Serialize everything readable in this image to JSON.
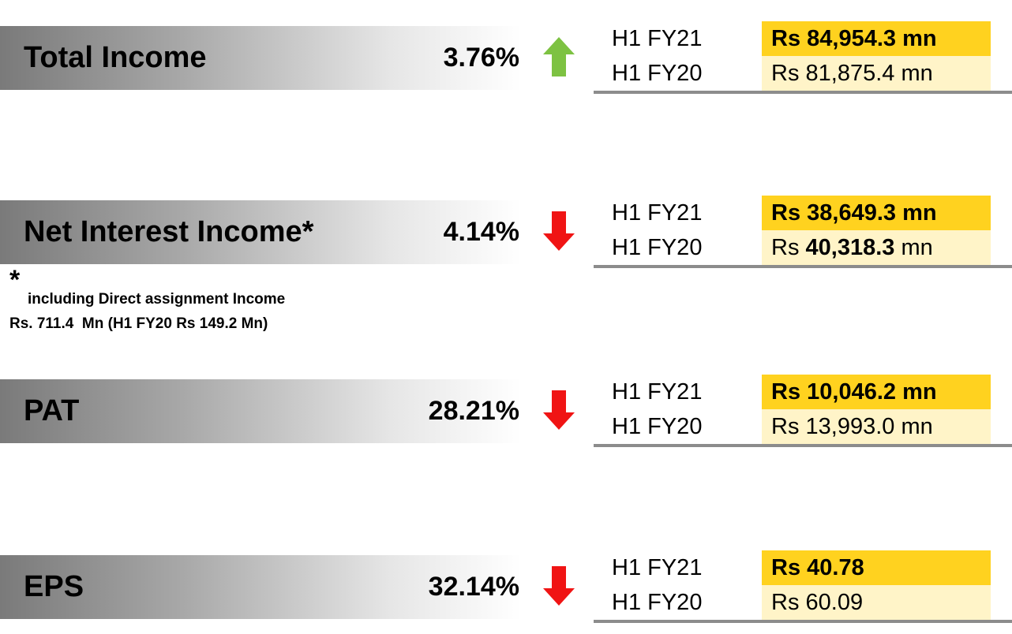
{
  "metrics": [
    {
      "label": "Total Income",
      "change": "3.76%",
      "direction": "up",
      "rows": [
        {
          "period": "H1 FY21",
          "value": [
            {
              "text": "Rs 84,954.3 mn",
              "bold": true
            }
          ]
        },
        {
          "period": "H1 FY20",
          "value": [
            {
              "text": "Rs 81,875.4 mn",
              "bold": false
            }
          ]
        }
      ]
    },
    {
      "label": "Net Interest Income*",
      "change": "4.14%",
      "direction": "down",
      "rows": [
        {
          "period": "H1 FY21",
          "value": [
            {
              "text": "Rs 38,649.3 mn",
              "bold": true
            }
          ]
        },
        {
          "period": "H1 FY20",
          "value": [
            {
              "text": "Rs ",
              "bold": false
            },
            {
              "text": "40,318.3",
              "bold": true
            },
            {
              "text": " mn",
              "bold": false
            }
          ]
        }
      ]
    },
    {
      "label": "PAT",
      "change": "28.21%",
      "direction": "down",
      "rows": [
        {
          "period": "H1 FY21",
          "value": [
            {
              "text": "Rs 10,046.2 mn",
              "bold": true
            }
          ]
        },
        {
          "period": "H1 FY20",
          "value": [
            {
              "text": "Rs 13,993.0 mn",
              "bold": false
            }
          ]
        }
      ]
    },
    {
      "label": "EPS",
      "change": "32.14%",
      "direction": "down",
      "rows": [
        {
          "period": "H1 FY21",
          "value": [
            {
              "text": "Rs 40.78",
              "bold": true
            }
          ]
        },
        {
          "period": "H1 FY20",
          "value": [
            {
              "text": "Rs 60.09",
              "bold": false
            }
          ]
        }
      ]
    }
  ],
  "footnote": {
    "mark": "*",
    "lines": [
      "including Direct assignment Income",
      "Rs. 711.4  Mn (H1 FY20 Rs 149.2 Mn)"
    ]
  }
}
